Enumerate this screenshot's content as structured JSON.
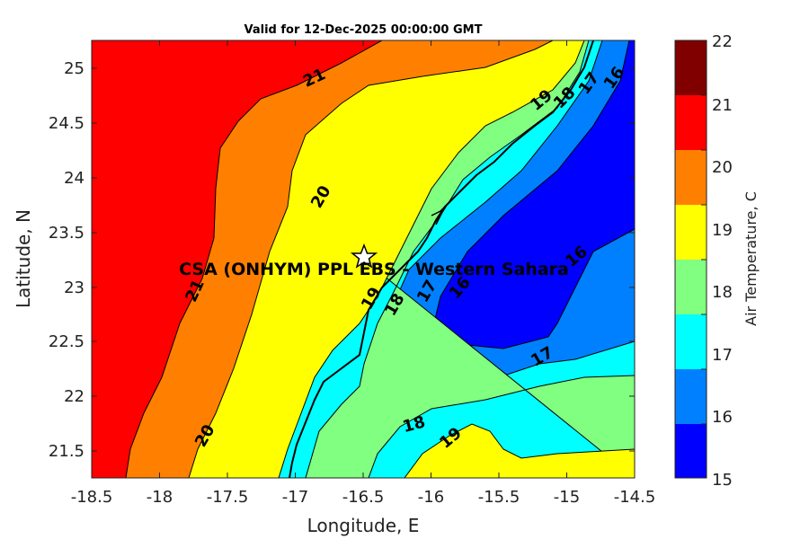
{
  "title": "Valid for 12-Dec-2025 00:00:00 GMT",
  "station_label": "CSA (ONHYM) PPL EBS  - Western Sahara",
  "xlabel": "Longitude, E",
  "ylabel": "Latitude, N",
  "colorbar_label": "Air Temperature, C",
  "x_ticks": [
    "-18.5",
    "-18",
    "-17.5",
    "-17",
    "-16.5",
    "-16",
    "-15.5",
    "-15",
    "-14.5"
  ],
  "y_ticks": [
    "21.5",
    "22",
    "22.5",
    "23",
    "23.5",
    "24",
    "24.5",
    "25"
  ],
  "colorbar_ticks": [
    "15",
    "16",
    "17",
    "18",
    "19",
    "20",
    "21",
    "22"
  ],
  "colors": {
    "15-16": "#0000ff",
    "16-17": "#0080ff",
    "17-18": "#00ffff",
    "18-19": "#80ff80",
    "19-20": "#ffff00",
    "20-21": "#ff8000",
    "21-22": "#ff0000",
    "22+": "#800000"
  },
  "contour_labels": [
    "21",
    "20",
    "19",
    "18",
    "17",
    "16",
    "21",
    "20",
    "19",
    "18",
    "17",
    "16",
    "17",
    "16",
    "18",
    "19"
  ],
  "chart_data": {
    "type": "heatmap",
    "title": "Valid for 12-Dec-2025 00:00:00 GMT",
    "xlabel": "Longitude, E",
    "ylabel": "Latitude, N",
    "xlim": [
      -18.5,
      -14.5
    ],
    "ylim": [
      21.25,
      25.25
    ],
    "colorbar": {
      "label": "Air Temperature, C",
      "range": [
        15,
        22
      ],
      "levels": [
        15,
        16,
        17,
        18,
        19,
        20,
        21,
        22
      ]
    },
    "station": {
      "name": "CSA (ONHYM) PPL EBS  - Western Sahara",
      "lon": -16.5,
      "lat": 23.3
    }
  }
}
